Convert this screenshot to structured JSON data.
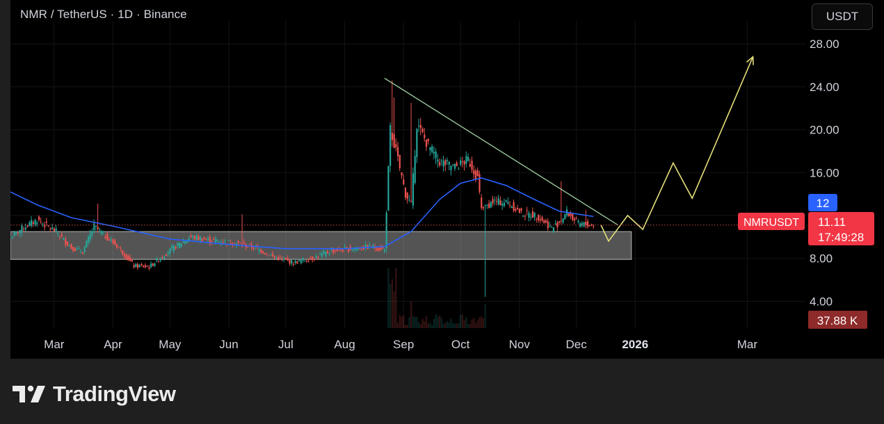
{
  "header": {
    "symbol_title": "NMR / TetherUS · 1D · Binance",
    "currency_button": "USDT"
  },
  "brand": {
    "name": "TradingView",
    "logo_icon": "tradingview-logo-icon"
  },
  "colors": {
    "background": "#000000",
    "footer": "#1f1f1f",
    "ma_line": "#2962ff",
    "bull": "#26a69a",
    "bear": "#ef5350",
    "trendline": "#a5d6a7",
    "projection": "#e6e07a",
    "price_label": "#f23645",
    "ma_label": "#2962ff",
    "volume_label": "#8e2a2a"
  },
  "chart_data": {
    "type": "candlestick",
    "y_axis": {
      "ticks": [
        4,
        8,
        12,
        16,
        20,
        24,
        28
      ],
      "tick_labels": [
        "4.00",
        "8.00",
        "",
        "16.00",
        "20.00",
        "24.00",
        "28.00"
      ],
      "range": [
        1.5,
        29.5
      ]
    },
    "x_axis": {
      "labels": [
        "Mar",
        "Apr",
        "May",
        "Jun",
        "Jul",
        "Aug",
        "Sep",
        "Oct",
        "Nov",
        "Dec",
        "2026",
        "Mar"
      ],
      "dates": [
        "2025-03-01",
        "2025-04-01",
        "2025-05-01",
        "2025-06-01",
        "2025-07-01",
        "2025-08-01",
        "2025-09-01",
        "2025-10-01",
        "2025-11-01",
        "2025-12-01",
        "2026-01-01",
        "2026-03-01"
      ],
      "range": [
        "2025-02-06",
        "2026-04-01"
      ]
    },
    "price_anchors": [
      [
        "2025-02-06",
        9.9
      ],
      [
        "2025-02-12",
        10.8
      ],
      [
        "2025-02-20",
        11.6
      ],
      [
        "2025-03-02",
        10.5
      ],
      [
        "2025-03-10",
        9.0
      ],
      [
        "2025-03-16",
        8.6
      ],
      [
        "2025-03-22",
        11.0
      ],
      [
        "2025-04-04",
        9.0
      ],
      [
        "2025-04-12",
        7.3
      ],
      [
        "2025-04-20",
        7.2
      ],
      [
        "2025-05-02",
        8.9
      ],
      [
        "2025-05-12",
        10.0
      ],
      [
        "2025-05-22",
        9.7
      ],
      [
        "2025-06-02",
        9.5
      ],
      [
        "2025-06-15",
        9.0
      ],
      [
        "2025-06-25",
        8.1
      ],
      [
        "2025-07-05",
        7.6
      ],
      [
        "2025-07-15",
        8.0
      ],
      [
        "2025-07-25",
        8.7
      ],
      [
        "2025-08-05",
        8.9
      ],
      [
        "2025-08-15",
        9.1
      ],
      [
        "2025-08-22",
        8.8
      ],
      [
        "2025-08-25",
        20.0
      ],
      [
        "2025-08-28",
        18.0
      ],
      [
        "2025-09-02",
        14.0
      ],
      [
        "2025-09-05",
        13.0
      ],
      [
        "2025-09-08",
        20.5
      ],
      [
        "2025-09-14",
        18.5
      ],
      [
        "2025-09-20",
        17.0
      ],
      [
        "2025-09-28",
        16.5
      ],
      [
        "2025-10-05",
        17.2
      ],
      [
        "2025-10-10",
        15.5
      ],
      [
        "2025-10-12",
        12.5
      ],
      [
        "2025-10-18",
        13.3
      ],
      [
        "2025-10-26",
        13.2
      ],
      [
        "2025-11-02",
        12.2
      ],
      [
        "2025-11-10",
        12.0
      ],
      [
        "2025-11-18",
        10.8
      ],
      [
        "2025-11-21",
        11.2
      ],
      [
        "2025-11-26",
        12.3
      ],
      [
        "2025-12-02",
        11.2
      ],
      [
        "2025-12-10",
        11.11
      ]
    ],
    "spikes": [
      {
        "date": "2025-03-24",
        "high": 13.1
      },
      {
        "date": "2025-06-08",
        "high": 12.1
      },
      {
        "date": "2025-08-26",
        "high": 24.6
      },
      {
        "date": "2025-08-27",
        "high": 23.0
      },
      {
        "date": "2025-09-05",
        "high": 22.5
      },
      {
        "date": "2025-10-14",
        "low": 4.4
      },
      {
        "date": "2025-11-23",
        "high": 15.2
      },
      {
        "date": "2025-12-06",
        "high": 12.5
      }
    ],
    "moving_average": [
      [
        "2025-02-06",
        14.2
      ],
      [
        "2025-02-20",
        13.0
      ],
      [
        "2025-03-10",
        11.8
      ],
      [
        "2025-04-01",
        11.0
      ],
      [
        "2025-05-01",
        9.8
      ],
      [
        "2025-06-01",
        9.3
      ],
      [
        "2025-07-01",
        8.9
      ],
      [
        "2025-08-01",
        8.9
      ],
      [
        "2025-08-22",
        9.1
      ],
      [
        "2025-09-05",
        10.5
      ],
      [
        "2025-09-20",
        13.5
      ],
      [
        "2025-10-01",
        15.0
      ],
      [
        "2025-10-12",
        15.5
      ],
      [
        "2025-10-25",
        14.8
      ],
      [
        "2025-11-10",
        13.4
      ],
      [
        "2025-11-22",
        12.4
      ],
      [
        "2025-12-10",
        11.9
      ]
    ],
    "support_zone": {
      "from": "2025-02-06",
      "to": "2025-12-30",
      "low": 7.9,
      "high": 10.5
    },
    "trendline": {
      "from": [
        "2025-08-22",
        24.8
      ],
      "to": [
        "2025-12-23",
        11.1
      ]
    },
    "projection": [
      [
        "2025-12-14",
        11.1
      ],
      [
        "2025-12-18",
        9.6
      ],
      [
        "2025-12-28",
        12.0
      ],
      [
        "2026-01-05",
        10.7
      ],
      [
        "2026-01-21",
        16.9
      ],
      [
        "2026-01-31",
        13.6
      ],
      [
        "2026-03-04",
        26.8
      ]
    ],
    "current_price_line": 11.11,
    "price_labels": {
      "ma_value": "12",
      "symbol": "NMRUSDT",
      "last_price": "11.11",
      "countdown": "17:49:28",
      "volume": "37.88 K"
    }
  }
}
